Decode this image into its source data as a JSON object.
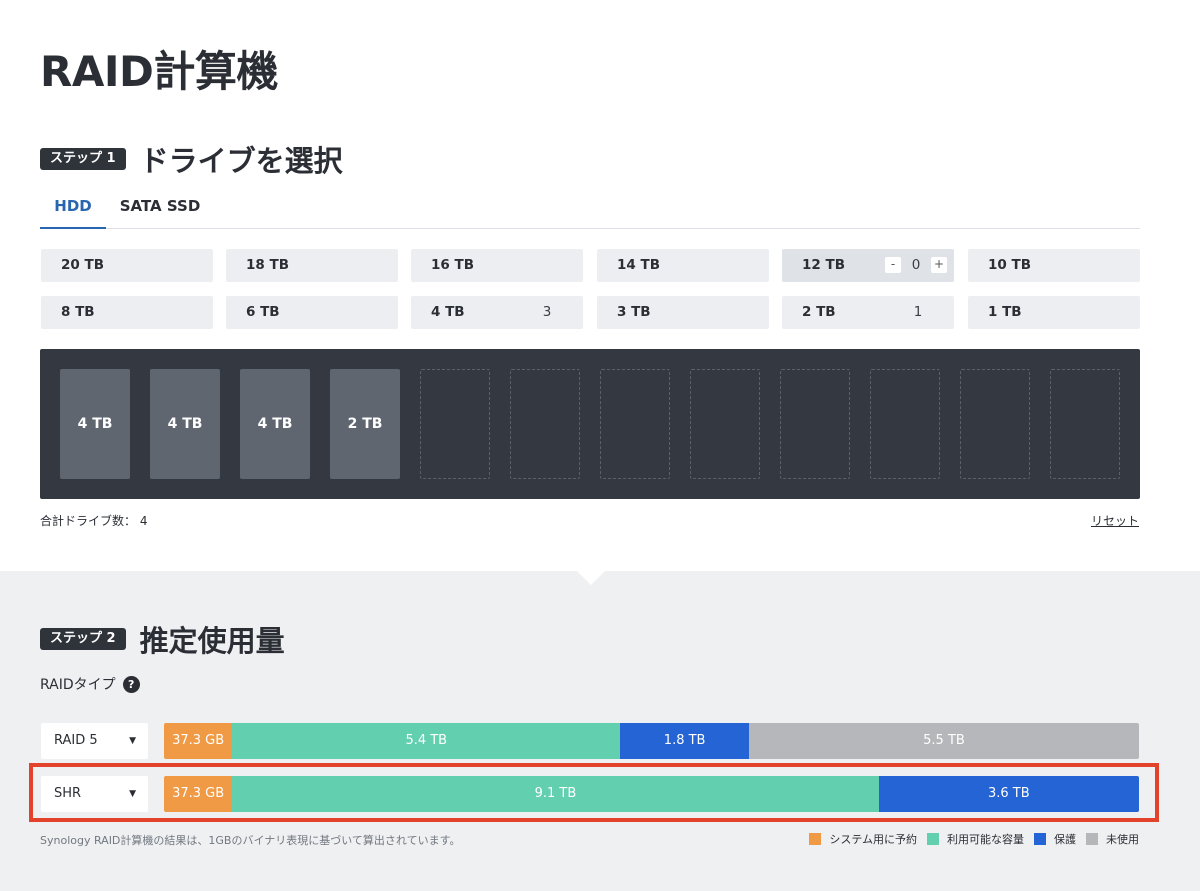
{
  "page_title": "RAID計算機",
  "step1": {
    "badge": "ステップ 1",
    "title": "ドライブを選択"
  },
  "tabs": [
    {
      "label": "HDD",
      "active": true
    },
    {
      "label": "SATA SSD",
      "active": false
    }
  ],
  "capacities_row1": [
    {
      "label": "20 TB"
    },
    {
      "label": "18 TB"
    },
    {
      "label": "16 TB"
    },
    {
      "label": "14 TB"
    },
    {
      "label": "12 TB",
      "stepper_value": "0",
      "minus": "-",
      "plus": "+"
    },
    {
      "label": "10 TB"
    }
  ],
  "capacities_row2": [
    {
      "label": "8 TB",
      "count": ""
    },
    {
      "label": "6 TB",
      "count": ""
    },
    {
      "label": "4 TB",
      "count": "3"
    },
    {
      "label": "3 TB",
      "count": ""
    },
    {
      "label": "2 TB",
      "count": "1"
    },
    {
      "label": "1 TB",
      "count": ""
    }
  ],
  "bays": [
    "4 TB",
    "4 TB",
    "4 TB",
    "2 TB",
    "",
    "",
    "",
    "",
    "",
    "",
    "",
    ""
  ],
  "total_drives": "合計ドライブ数： 4",
  "reset_label": "リセット",
  "step2": {
    "badge": "ステップ 2",
    "title": "推定使用量"
  },
  "raid_type_label": "RAIDタイプ",
  "help_icon": "?",
  "colors": {
    "system": "#f09a45",
    "available": "#62cfae",
    "protection": "#2464d4",
    "unused": "#b6b7ba",
    "highlight": "#e2432a"
  },
  "rows": [
    {
      "raid": "RAID 5",
      "segments": [
        {
          "label": "37.3 GB",
          "type": "system",
          "share": 0.07
        },
        {
          "label": "5.4 TB",
          "type": "available",
          "share": 0.398
        },
        {
          "label": "1.8 TB",
          "type": "protection",
          "share": 0.132
        },
        {
          "label": "5.5 TB",
          "type": "unused",
          "share": 0.4
        }
      ]
    },
    {
      "raid": "SHR",
      "segments": [
        {
          "label": "37.3 GB",
          "type": "system",
          "share": 0.07
        },
        {
          "label": "9.1 TB",
          "type": "available",
          "share": 0.663
        },
        {
          "label": "3.6 TB",
          "type": "protection",
          "share": 0.267
        }
      ]
    }
  ],
  "footnote": "Synology RAID計算機の結果は、1GBのバイナリ表現に基づいて算出されています。",
  "legend": [
    {
      "label": "システム用に予約",
      "type": "system"
    },
    {
      "label": "利用可能な容量",
      "type": "available"
    },
    {
      "label": "保護",
      "type": "protection"
    },
    {
      "label": "未使用",
      "type": "unused"
    }
  ]
}
